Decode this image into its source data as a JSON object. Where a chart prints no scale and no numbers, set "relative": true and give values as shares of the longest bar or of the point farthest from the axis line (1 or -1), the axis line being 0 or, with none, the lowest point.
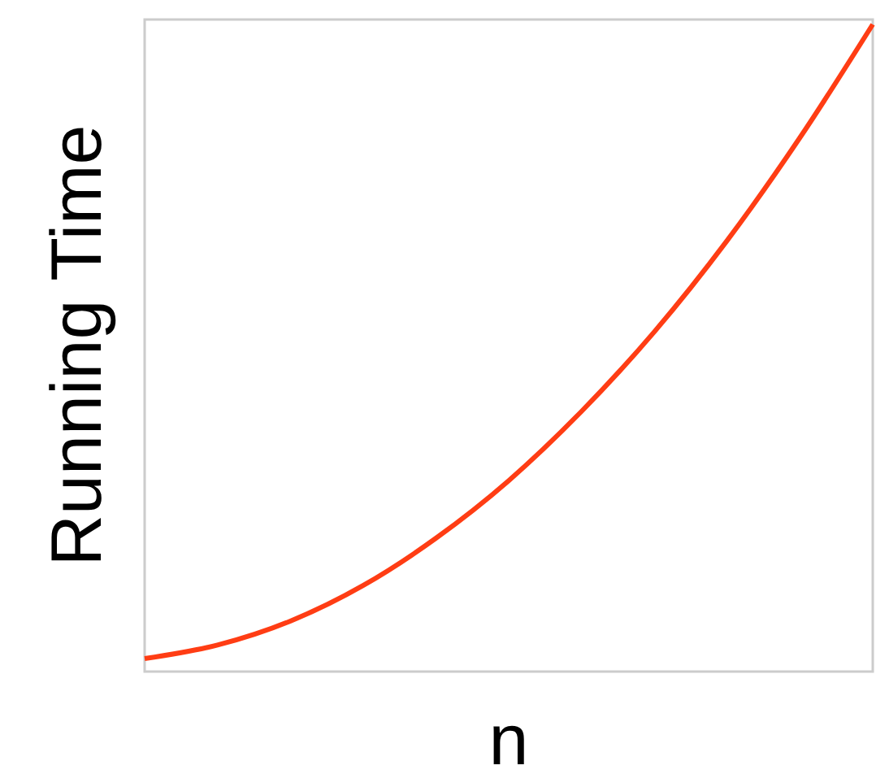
{
  "chart_data": {
    "type": "line",
    "relative": true,
    "xlabel": "n",
    "ylabel": "Running Time",
    "categories": [
      null,
      null,
      null,
      null,
      null,
      null,
      null,
      null,
      null,
      null,
      null
    ],
    "series": [
      {
        "color": "#ff3d14",
        "values": [
          0.02,
          0.041,
          0.078,
          0.133,
          0.206,
          0.295,
          0.402,
          0.525,
          0.666,
          0.825,
          1.0
        ]
      }
    ],
    "marker": "none",
    "line_style": "solid"
  }
}
